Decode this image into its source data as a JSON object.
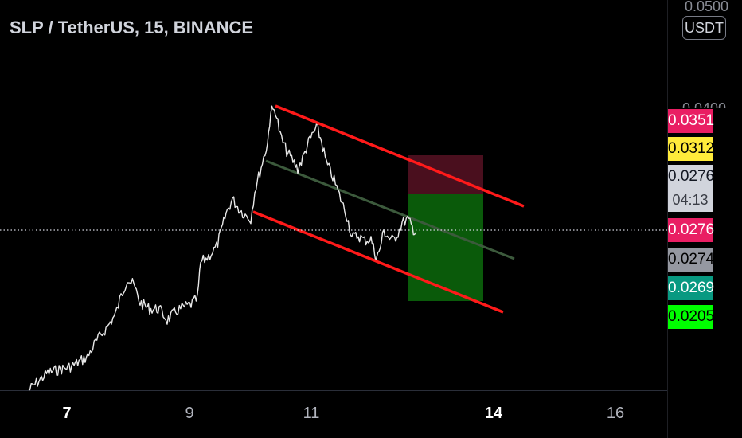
{
  "header": {
    "title": "SLP / TetherUS, 15, BINANCE",
    "currency_label": "USDT"
  },
  "price_axis": {
    "top_label": "0.0500",
    "hidden_label": "0.0400",
    "labels": [
      {
        "value": "0.0351",
        "bg": "#e91e63",
        "color": "#ffffff"
      },
      {
        "value": "0.0312",
        "bg": "#ffeb3b",
        "color": "#000000"
      },
      {
        "value": "0.0276",
        "bg": "#d1d4dc",
        "color": "#131722"
      },
      {
        "value": "0.0276",
        "bg": "#e91e63",
        "color": "#ffffff"
      },
      {
        "value": "0.0274",
        "bg": "#9598a1",
        "color": "#000000"
      },
      {
        "value": "0.0269",
        "bg": "#089981",
        "color": "#ffffff"
      },
      {
        "value": "0.0205",
        "bg": "#00ff00",
        "color": "#000000"
      }
    ],
    "countdown": "04:13"
  },
  "time_axis": {
    "ticks": [
      {
        "label": "7",
        "bold": true
      },
      {
        "label": "9",
        "bold": false
      },
      {
        "label": "11",
        "bold": false
      },
      {
        "label": "14",
        "bold": true
      },
      {
        "label": "16",
        "bold": false
      }
    ]
  },
  "colors": {
    "background": "#000000",
    "price_line": "#e8e8e8",
    "channel": "#ff1a1a",
    "midline": "#3c5a3c",
    "stop_zone": "#4a0f1e",
    "target_zone": "#0a5a0a",
    "current_price_line": "#d1d4dc"
  },
  "drawings": {
    "trend_channel": "red descending channel",
    "position": "long position tool with stop zone and target zone"
  }
}
